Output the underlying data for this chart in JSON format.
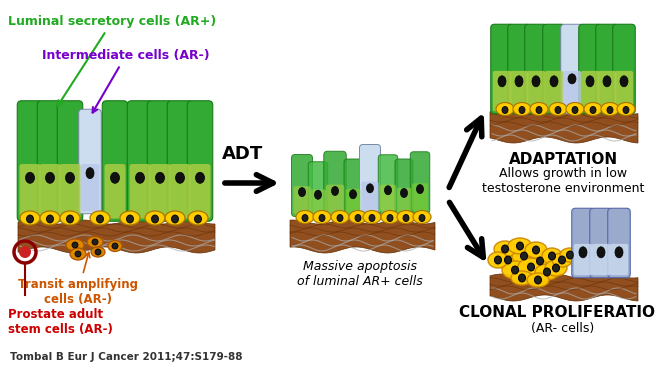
{
  "background_color": "#ffffff",
  "labels": {
    "luminal": "Luminal secretory cells (AR+)",
    "intermediate": "Intermediate cells (AR-)",
    "transit": "Transit amplifying\ncells (AR-)",
    "prostate": "Prostate adult\nstem cells (AR-)",
    "adt": "ADT",
    "apoptosis": "Massive apoptosis\nof luminal AR+ cells",
    "adaptation": "ADAPTATION",
    "adaptation_sub": "Allows growth in low\ntestosterone environment",
    "clonal": "CLONAL PROLIFERATION",
    "clonal_sub": "(AR- cells)",
    "citation": "Tombal B Eur J Cancer 2011;47:S179-88"
  },
  "colors": {
    "luminal_text": "#22aa22",
    "intermediate_text": "#7700cc",
    "transit_text": "#cc5500",
    "prostate_text": "#cc0000",
    "green_dark": "#1a7a1a",
    "green_mid": "#33aa33",
    "green_light": "#66dd66",
    "yellow_cell": "#ddaa00",
    "yellow_bright": "#ffcc00",
    "blue_cell": "#99aacc",
    "blue_light": "#ccddef",
    "brown_base": "#8B4513",
    "brown_dark": "#5c2a00",
    "dark_red": "#8B0000",
    "stem_red": "#cc2222",
    "arrow_color": "#111111",
    "black": "#000000",
    "gray_line": "#999999"
  },
  "layout": {
    "fig_width": 6.56,
    "fig_height": 3.68,
    "dpi": 100
  }
}
